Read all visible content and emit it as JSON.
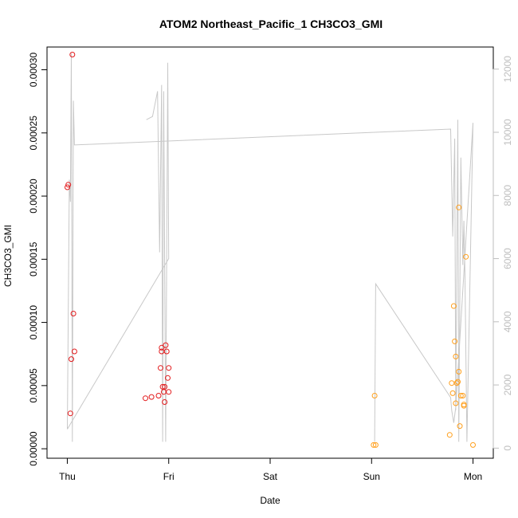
{
  "chart_data": {
    "type": "scatter",
    "title": "ATOM2 Northeast_Pacific_1 CH3CO3_GMI",
    "xlabel": "Date",
    "ylabel": "CH3CO3_GMI",
    "x_unit": "days since Thu 00:00",
    "xlim": [
      -0.2,
      4.2
    ],
    "ylim": [
      -7.5e-06,
      0.000318
    ],
    "y2lim": [
      -320,
      12700
    ],
    "x_ticks": [
      {
        "label": "Thu",
        "value": 0
      },
      {
        "label": "Fri",
        "value": 1
      },
      {
        "label": "Sat",
        "value": 2
      },
      {
        "label": "Sun",
        "value": 3
      },
      {
        "label": "Mon",
        "value": 4
      }
    ],
    "y_ticks": [
      {
        "label": "0.00000",
        "value": 0
      },
      {
        "label": "0.00005",
        "value": 5e-05
      },
      {
        "label": "0.00010",
        "value": 0.0001
      },
      {
        "label": "0.00015",
        "value": 0.00015
      },
      {
        "label": "0.00020",
        "value": 0.0002
      },
      {
        "label": "0.00025",
        "value": 0.00025
      },
      {
        "label": "0.00030",
        "value": 0.0003
      }
    ],
    "y2_ticks": [
      {
        "label": "0",
        "value": 0
      },
      {
        "label": "2000",
        "value": 2000
      },
      {
        "label": "4000",
        "value": 4000
      },
      {
        "label": "6000",
        "value": 6000
      },
      {
        "label": "8000",
        "value": 8000
      },
      {
        "label": "10000",
        "value": 10000
      },
      {
        "label": "12000",
        "value": 12000
      }
    ],
    "series": [
      {
        "color": "#e31a1c",
        "points": [
          [
            0.0,
            0.000207
          ],
          [
            0.01,
            0.000209
          ],
          [
            0.03,
            2.8e-05
          ],
          [
            0.04,
            7.1e-05
          ],
          [
            0.05,
            0.000312
          ],
          [
            0.06,
            0.000107
          ],
          [
            0.07,
            7.7e-05
          ],
          [
            0.77,
            4e-05
          ],
          [
            0.83,
            4.1e-05
          ],
          [
            0.9,
            4.2e-05
          ],
          [
            0.92,
            6.4e-05
          ],
          [
            0.93,
            8e-05
          ],
          [
            0.93,
            7.7e-05
          ],
          [
            0.94,
            4.9e-05
          ],
          [
            0.95,
            4.5e-05
          ],
          [
            0.96,
            4.9e-05
          ],
          [
            0.96,
            3.7e-05
          ],
          [
            0.97,
            8.2e-05
          ],
          [
            0.98,
            7.7e-05
          ],
          [
            0.99,
            5.6e-05
          ],
          [
            1.0,
            4.5e-05
          ],
          [
            1.0,
            6.4e-05
          ]
        ]
      },
      {
        "color": "#ff9f1c",
        "points": [
          [
            3.02,
            3e-06
          ],
          [
            3.03,
            4.2e-05
          ],
          [
            3.04,
            3e-06
          ],
          [
            3.77,
            1.1e-05
          ],
          [
            3.79,
            5.2e-05
          ],
          [
            3.8,
            4.4e-05
          ],
          [
            3.81,
            0.000113
          ],
          [
            3.82,
            8.5e-05
          ],
          [
            3.83,
            7.3e-05
          ],
          [
            3.83,
            3.6e-05
          ],
          [
            3.84,
            5.2e-05
          ],
          [
            3.85,
            5.3e-05
          ],
          [
            3.86,
            0.000191
          ],
          [
            3.86,
            6.1e-05
          ],
          [
            3.87,
            1.8e-05
          ],
          [
            3.88,
            4.2e-05
          ],
          [
            3.9,
            4.2e-05
          ],
          [
            3.91,
            3.5e-05
          ],
          [
            3.91,
            3.4e-05
          ],
          [
            3.93,
            0.000152
          ],
          [
            4.0,
            3e-06
          ]
        ]
      }
    ],
    "altitude_line": {
      "color": "#c8c8c8",
      "segments": [
        [
          [
            0.0,
            600
          ],
          [
            0.02,
            8500
          ],
          [
            0.03,
            7800
          ],
          [
            0.04,
            12500
          ],
          [
            0.05,
            200
          ],
          [
            0.06,
            11000
          ],
          [
            0.07,
            9600
          ],
          [
            3.78,
            10100
          ],
          [
            3.8,
            6700
          ],
          [
            3.82,
            9800
          ],
          [
            3.83,
            1200
          ],
          [
            3.85,
            10400
          ],
          [
            3.86,
            200
          ],
          [
            3.88,
            9200
          ],
          [
            3.9,
            5800
          ],
          [
            3.91,
            7200
          ],
          [
            3.92,
            5600
          ],
          [
            3.94,
            200
          ],
          [
            4.0,
            10300
          ],
          [
            3.83,
            1300
          ],
          [
            3.81,
            800
          ],
          [
            3.79,
            1200
          ],
          [
            3.78,
            1600
          ],
          [
            3.04,
            5200
          ],
          [
            3.03,
            200
          ]
        ],
        [
          [
            0.0,
            600
          ],
          [
            1.0,
            6000
          ],
          [
            0.99,
            12200
          ],
          [
            0.97,
            200
          ],
          [
            0.95,
            11300
          ],
          [
            0.94,
            200
          ],
          [
            0.93,
            11500
          ],
          [
            0.91,
            6200
          ],
          [
            0.89,
            11300
          ],
          [
            0.84,
            10500
          ],
          [
            0.78,
            10400
          ]
        ]
      ]
    },
    "grid": false,
    "legend": "none"
  }
}
